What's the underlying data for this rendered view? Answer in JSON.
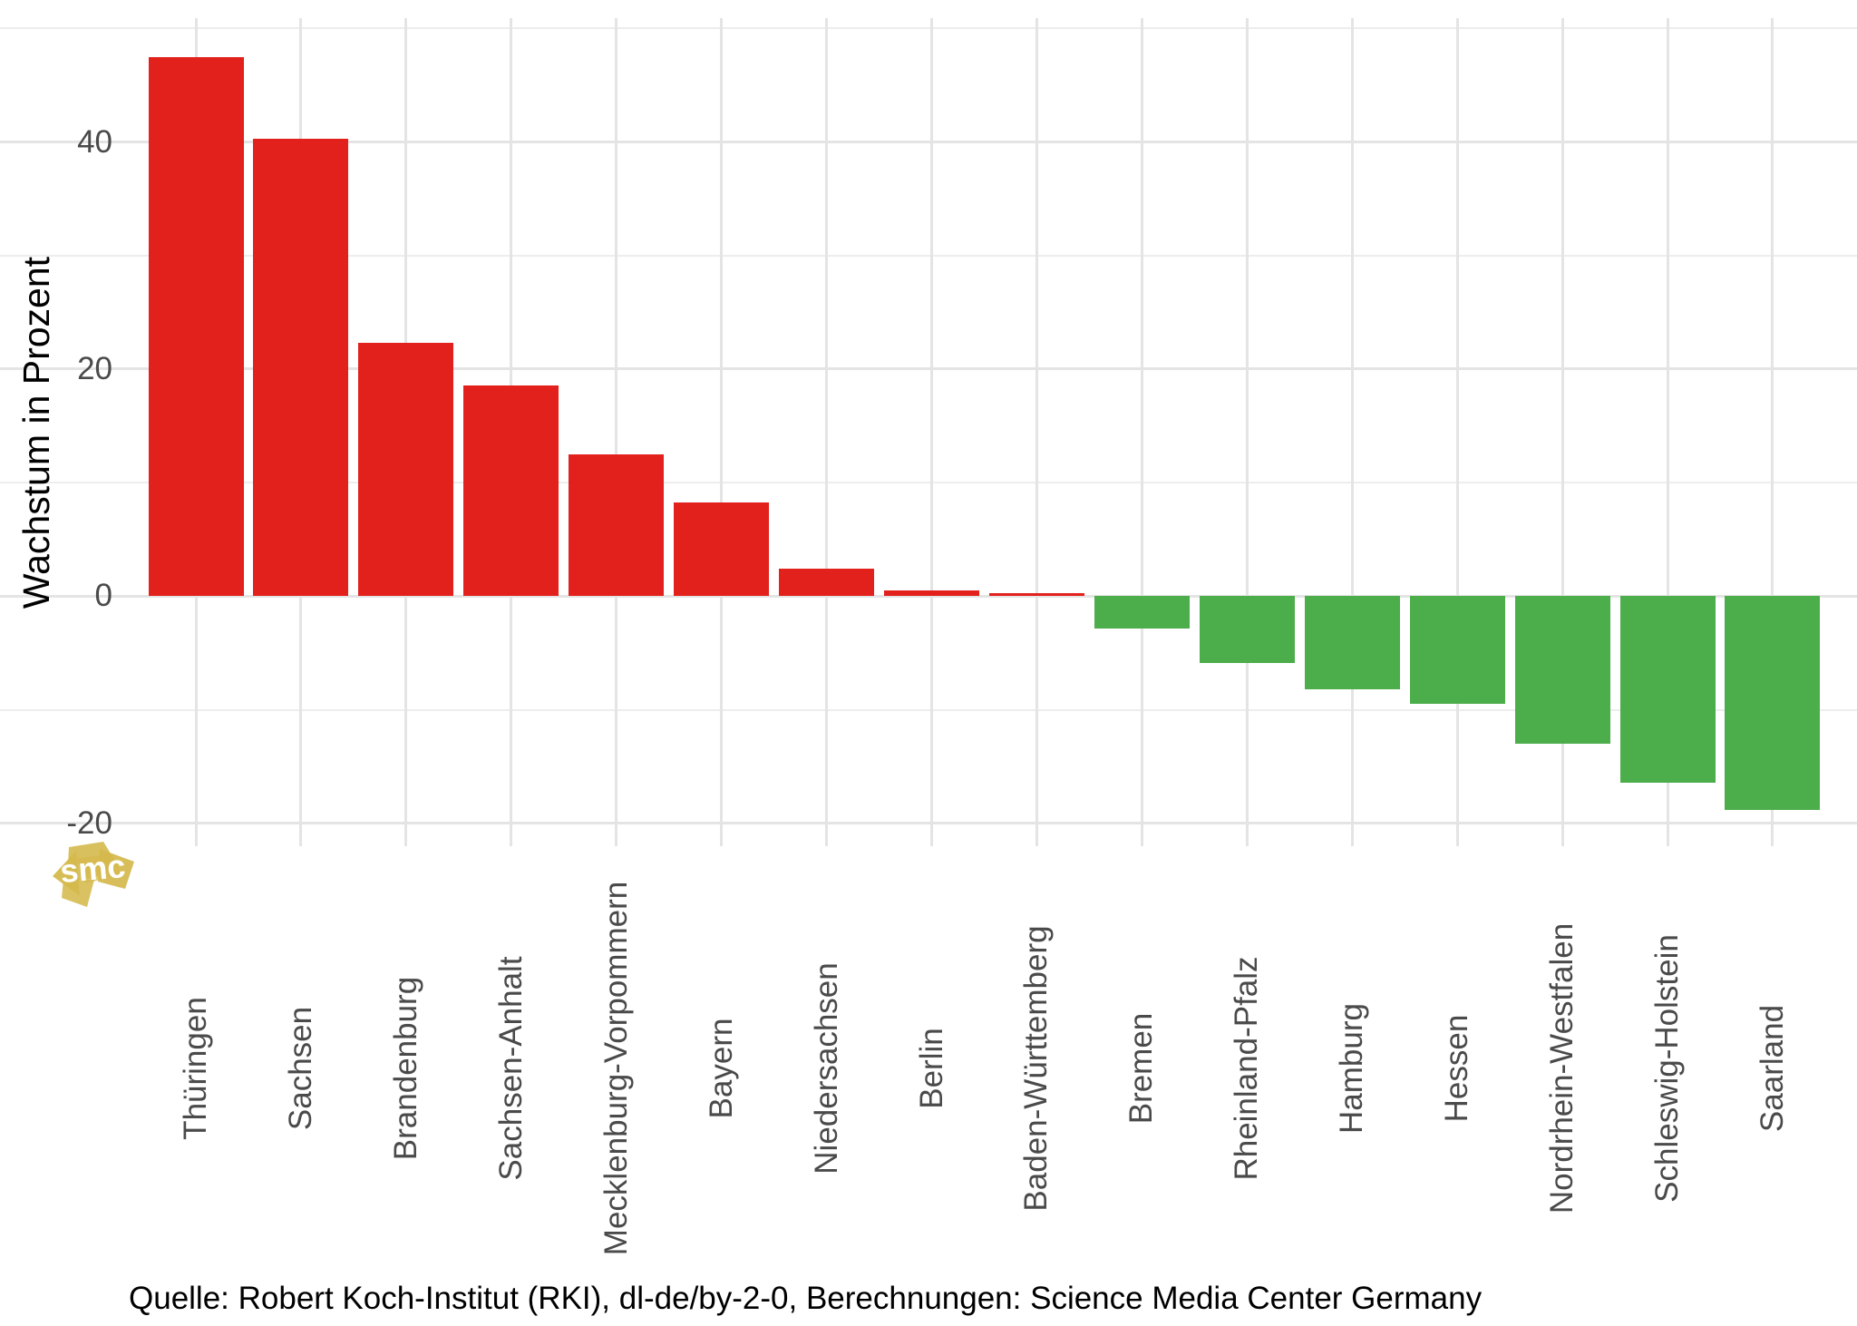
{
  "chart_data": {
    "type": "bar",
    "title": "",
    "ylabel": "Wachstum in Prozent",
    "xlabel": "",
    "categories": [
      "Thüringen",
      "Sachsen",
      "Brandenburg",
      "Sachsen-Anhalt",
      "Mecklenburg-Vorpommern",
      "Bayern",
      "Niedersachsen",
      "Berlin",
      "Baden-Württemberg",
      "Bremen",
      "Rheinland-Pfalz",
      "Hamburg",
      "Hessen",
      "Nordrhein-Westfalen",
      "Schleswig-Holstein",
      "Saarland"
    ],
    "values": [
      47.5,
      40.3,
      22.3,
      18.6,
      12.5,
      8.3,
      2.4,
      0.5,
      0.3,
      -2.8,
      -5.9,
      -8.2,
      -9.5,
      -13.0,
      -16.4,
      -18.8
    ],
    "y_major_ticks": [
      40,
      20,
      0,
      -20
    ],
    "y_major_tick_labels": [
      "40",
      "20",
      "0",
      "-20"
    ],
    "y_minor_gridlines": [
      50,
      30,
      10,
      -10
    ],
    "ylim": [
      -22,
      50.9
    ],
    "grid": "horizontal major+minor, one vertical gridline per category",
    "legend_position": "none",
    "positive_color": "#e2211c",
    "negative_color": "#4cad4b",
    "grid_major_color": "#e4e4e4",
    "grid_minor_color": "#ededed",
    "axis_text_color": "#4a4a4a",
    "background_color": "#ffffff"
  },
  "caption": {
    "text": "Quelle: Robert Koch-Institut (RKI), dl-de/by-2-0, Berechnungen: Science Media Center Germany"
  },
  "logo": {
    "text": "smc",
    "color": "#d5b94d",
    "text_color": "#ffffff"
  }
}
